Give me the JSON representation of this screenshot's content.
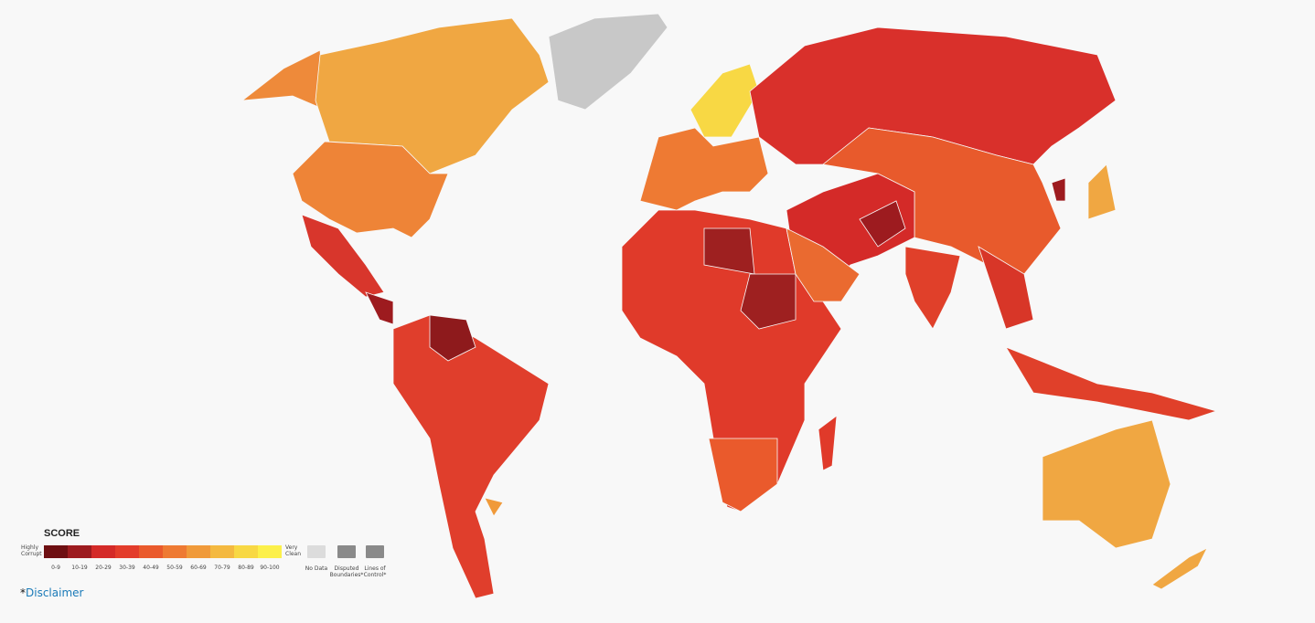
{
  "legend": {
    "title": "SCORE",
    "low_label": "Highly Corrupt",
    "high_label": "Very Clean",
    "bins": [
      {
        "label": "0-9",
        "color": "#6e0f12"
      },
      {
        "label": "10-19",
        "color": "#9d1b1f"
      },
      {
        "label": "20-29",
        "color": "#d42a28"
      },
      {
        "label": "30-39",
        "color": "#e33c2b"
      },
      {
        "label": "40-49",
        "color": "#ea5a2c"
      },
      {
        "label": "50-59",
        "color": "#ee7a33"
      },
      {
        "label": "60-69",
        "color": "#f09a3a"
      },
      {
        "label": "70-79",
        "color": "#f4b940"
      },
      {
        "label": "80-89",
        "color": "#f8d844"
      },
      {
        "label": "90-100",
        "color": "#fcf04a"
      }
    ],
    "extras": [
      {
        "label": "No Data",
        "color": "#dcdcdc"
      },
      {
        "label": "Disputed Boundaries*",
        "color": "#8a8a8a"
      },
      {
        "label": "Lines of Control*",
        "color": "#8a8a8a"
      }
    ]
  },
  "footer": {
    "marker": "*",
    "link": "Disclaimer"
  }
}
